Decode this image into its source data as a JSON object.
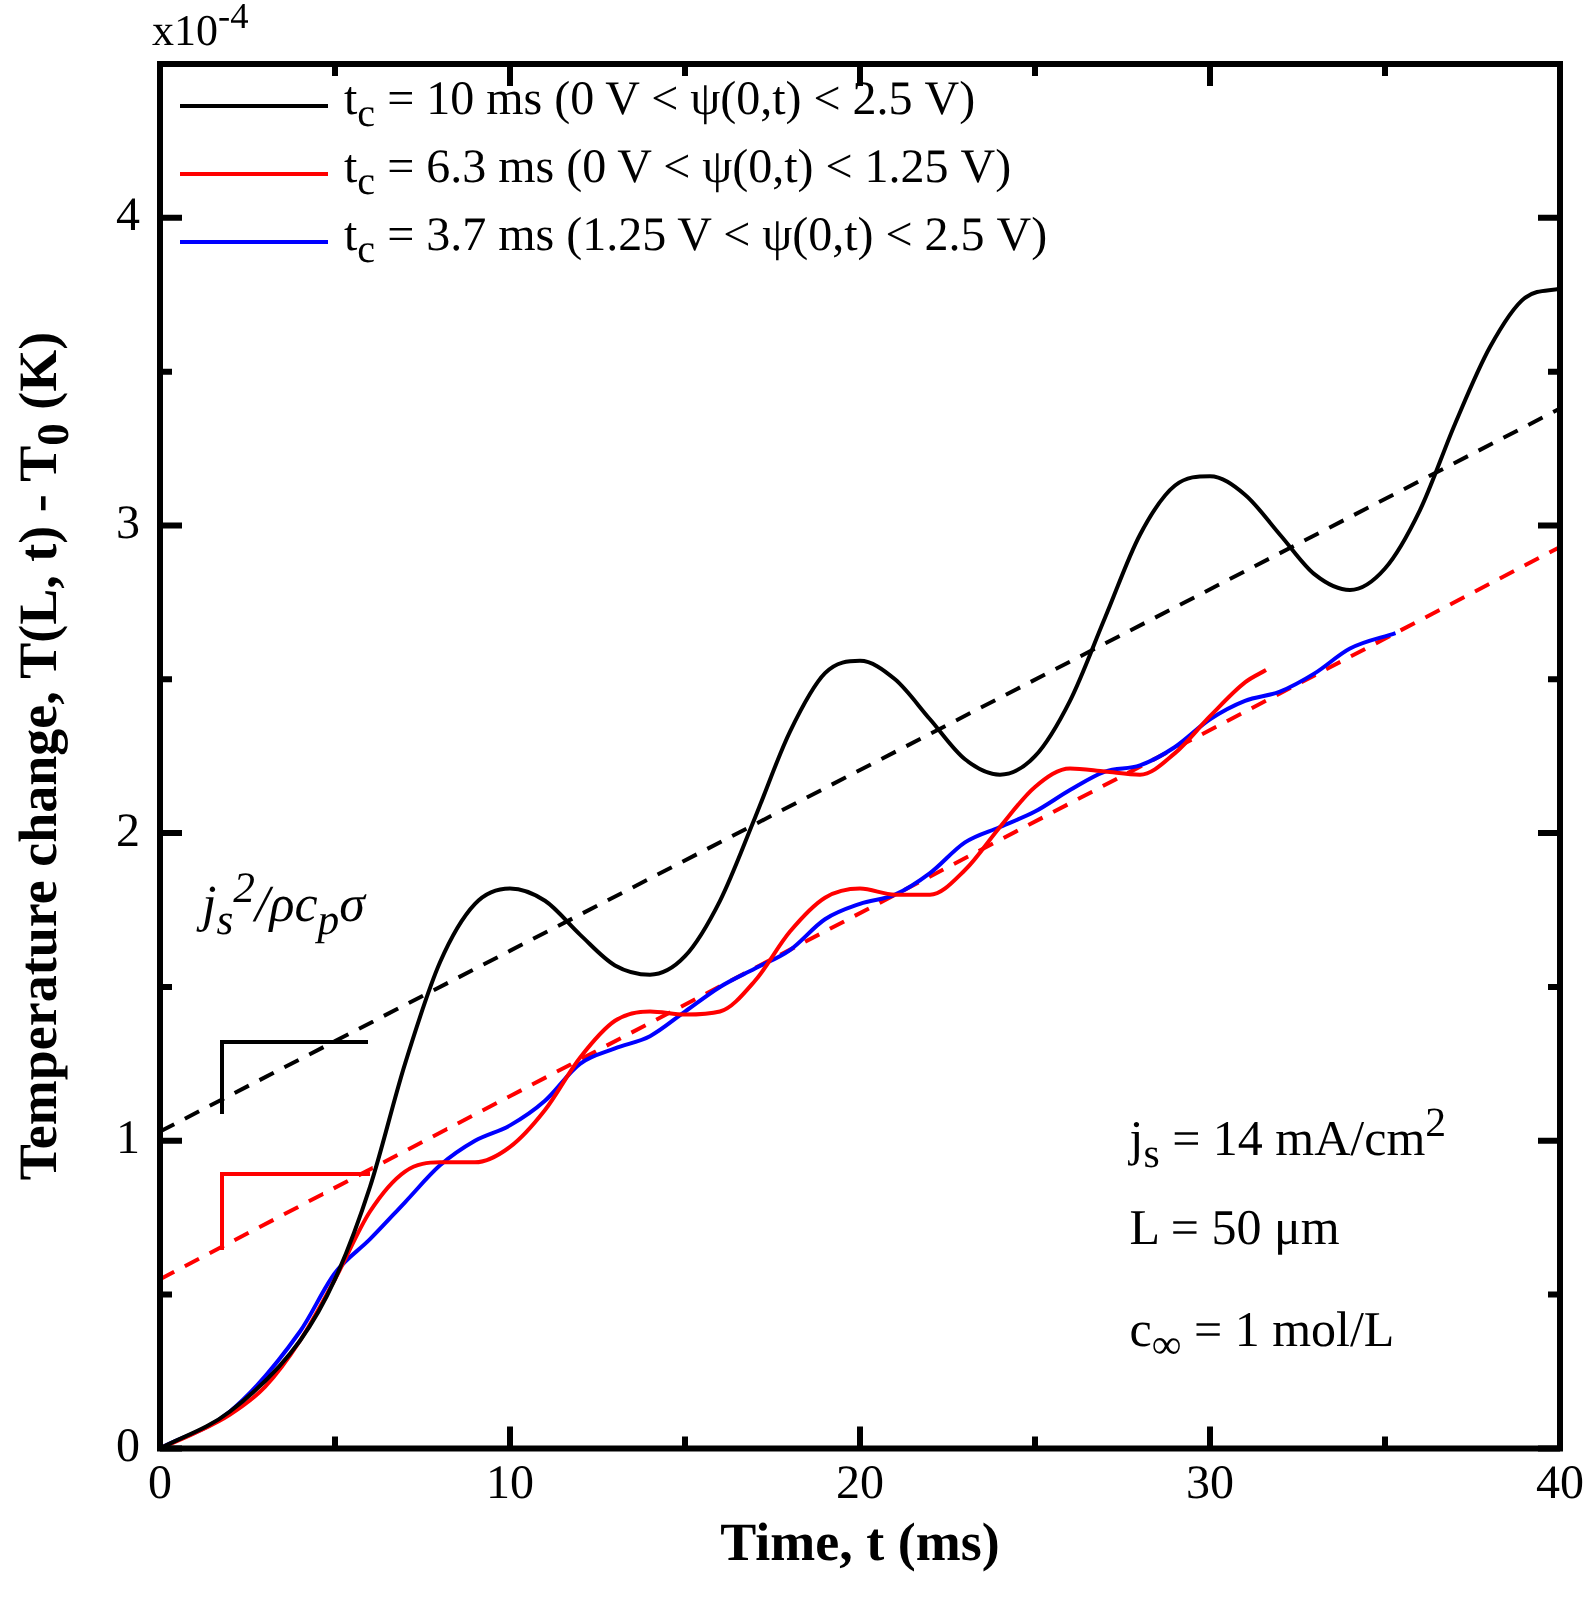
{
  "chart_data": {
    "type": "line",
    "xlabel": "Time, t (ms)",
    "ylabel": "Temperature change, T(L, t) - T$_{0}$ (K)",
    "xlim": [
      0,
      40
    ],
    "ylim": [
      0,
      4.5
    ],
    "xticks": [
      0,
      {
        "value": 5,
        "label": null
      },
      10,
      {
        "value": 15,
        "label": null
      },
      20,
      {
        "value": 25,
        "label": null
      },
      30,
      {
        "value": 35,
        "label": null
      },
      40
    ],
    "yticks": [
      0,
      {
        "value": 0.5,
        "label": null
      },
      1,
      {
        "value": 1.5,
        "label": null
      },
      2,
      {
        "value": 2.5,
        "label": null
      },
      3,
      {
        "value": 3.5,
        "label": null
      },
      4
    ],
    "grid": false,
    "legend": "top left",
    "marker": "none",
    "line_style": "solid",
    "annotations": [
      "x10$^{-4}$",
      "j$_{s}$$^{2}$/ρc$_{p}$σ",
      "j$_{s}$ = 14 mA/cm$^{2}$",
      "L = 50 μm",
      "c$_{∞}$ = 1 mol/L"
    ],
    "series": [
      {
        "name": "t$_{c}$ = 10 ms (0 V < ψ(0,t) < 2.5 V)",
        "color": "#000000",
        "x": [
          0,
          2,
          4,
          5,
          6,
          7,
          8,
          9,
          10,
          11,
          12,
          13,
          14,
          15,
          16,
          17,
          18,
          19,
          20,
          21,
          22,
          23,
          24,
          25,
          26,
          27,
          28,
          29,
          30,
          31,
          32,
          33,
          34,
          35,
          36,
          37,
          38,
          39,
          40
        ],
        "values": [
          0,
          0.12,
          0.35,
          0.55,
          0.85,
          1.25,
          1.58,
          1.77,
          1.82,
          1.78,
          1.67,
          1.57,
          1.54,
          1.6,
          1.78,
          2.05,
          2.33,
          2.52,
          2.56,
          2.5,
          2.37,
          2.24,
          2.19,
          2.25,
          2.43,
          2.7,
          2.97,
          3.13,
          3.16,
          3.1,
          2.97,
          2.84,
          2.79,
          2.86,
          3.05,
          3.33,
          3.58,
          3.74,
          3.77
        ]
      },
      {
        "name": "t$_{c}$ = 6.3 ms (0 V < ψ(0,t) < 1.25 V)",
        "color": "#ff0000",
        "x": [
          0,
          1,
          2,
          3,
          4,
          5,
          6,
          7,
          8,
          9,
          10,
          11,
          12,
          13,
          14,
          15,
          16,
          17,
          18,
          19,
          20,
          21,
          22,
          23,
          24,
          25,
          26,
          27,
          28,
          29,
          30,
          31,
          31.6
        ],
        "values": [
          0,
          0.05,
          0.11,
          0.2,
          0.35,
          0.55,
          0.77,
          0.9,
          0.93,
          0.93,
          0.98,
          1.1,
          1.27,
          1.39,
          1.42,
          1.41,
          1.42,
          1.52,
          1.68,
          1.79,
          1.82,
          1.8,
          1.8,
          1.88,
          2.02,
          2.15,
          2.21,
          2.2,
          2.19,
          2.26,
          2.38,
          2.49,
          2.53
        ]
      },
      {
        "name": "t$_{c}$ = 3.7 ms (1.25 V < ψ(0,t) < 2.5 V)",
        "color": "#0000ff",
        "x": [
          0,
          2,
          4,
          5,
          6,
          7,
          8,
          9,
          10,
          11,
          12,
          13,
          14,
          15,
          16,
          17,
          18,
          19,
          20,
          21,
          22,
          23,
          24,
          25,
          26,
          27,
          28,
          29,
          30,
          31,
          32,
          33,
          34,
          35.3
        ],
        "values": [
          0,
          0.12,
          0.38,
          0.57,
          0.68,
          0.8,
          0.92,
          1.0,
          1.05,
          1.13,
          1.25,
          1.3,
          1.34,
          1.42,
          1.5,
          1.56,
          1.62,
          1.72,
          1.77,
          1.8,
          1.87,
          1.97,
          2.02,
          2.07,
          2.14,
          2.2,
          2.22,
          2.28,
          2.37,
          2.43,
          2.46,
          2.52,
          2.6,
          2.65
        ]
      },
      {
        "type": "line",
        "line_style": "dashed",
        "color": "#000000",
        "x": [
          0,
          40
        ],
        "values": [
          1.03,
          3.38
        ]
      },
      {
        "type": "line",
        "line_style": "dashed",
        "color": "#ff0000",
        "x": [
          0,
          40
        ],
        "values": [
          0.55,
          2.93
        ]
      }
    ]
  }
}
